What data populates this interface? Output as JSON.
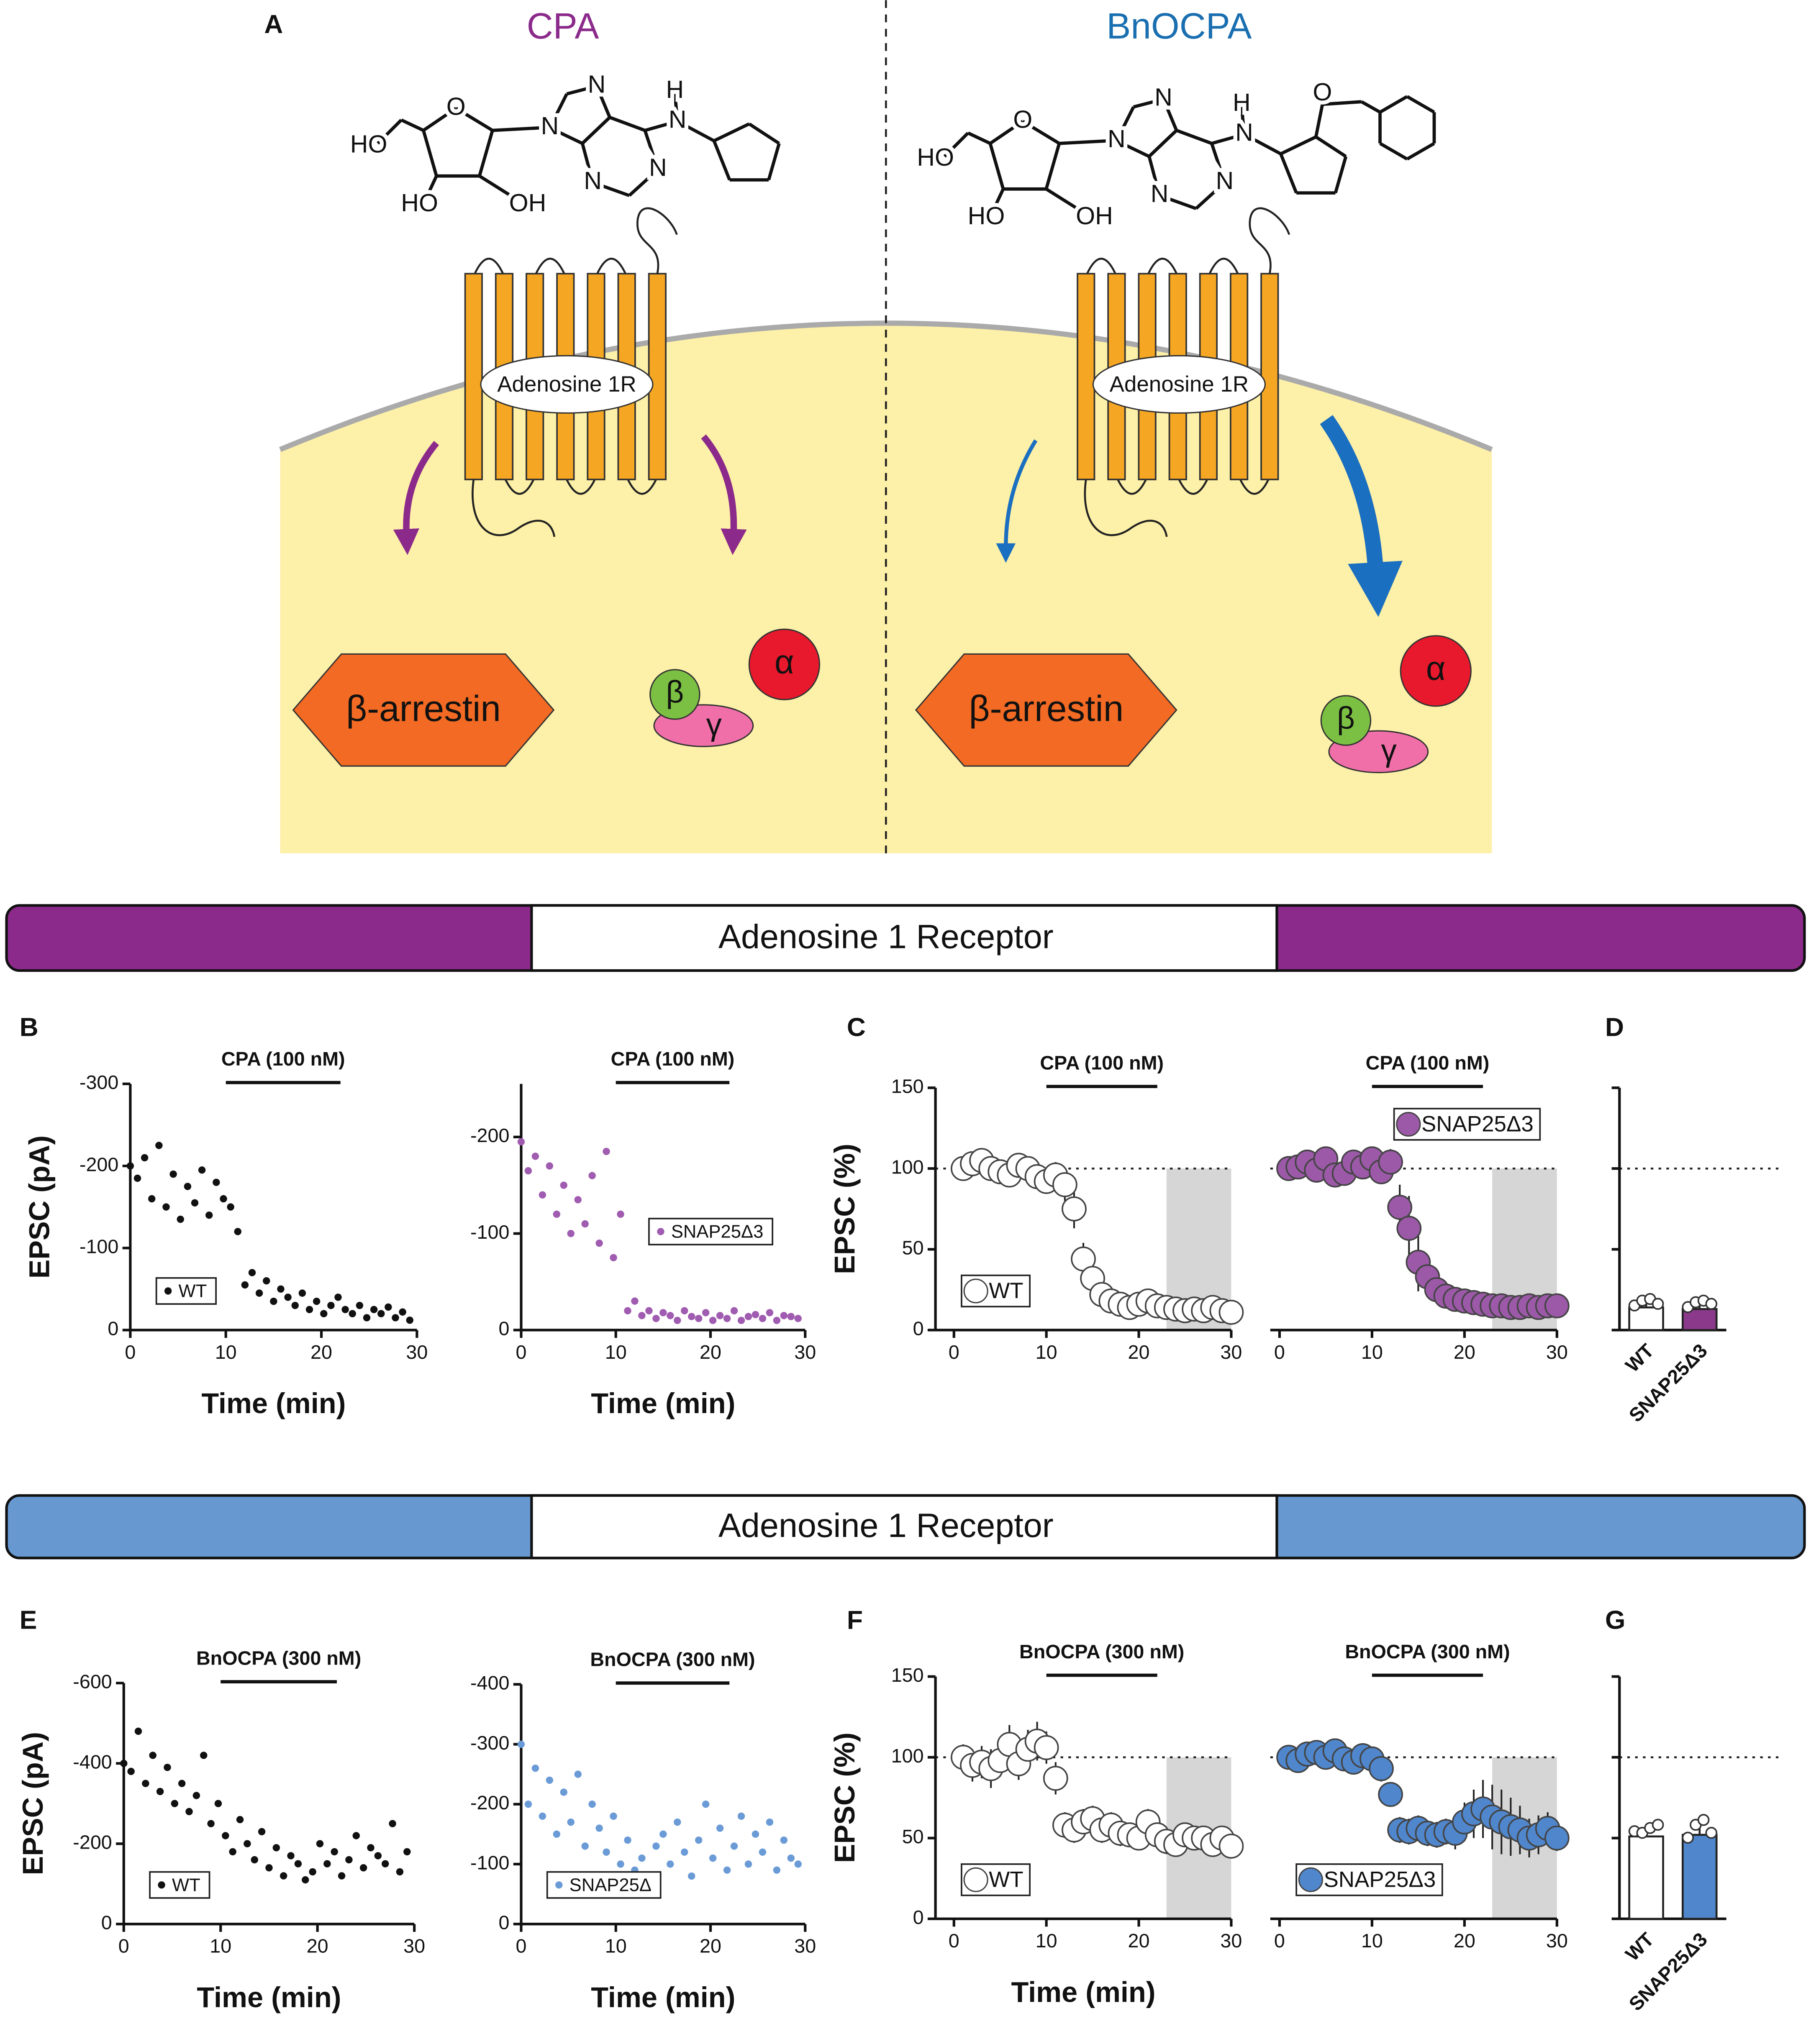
{
  "panel_a": {
    "label": "A",
    "left_title": "CPA",
    "right_title": "BnOCPA",
    "receptor": "Adenosine 1R",
    "arrestin": "β-arrestin",
    "alpha": "α",
    "beta": "β",
    "gamma": "γ",
    "cpa_atoms": [
      "HO",
      "O",
      "N",
      "N",
      "N",
      "N",
      "H",
      "N",
      "HO",
      "OH"
    ],
    "bnocpa_atoms": [
      "HO",
      "O",
      "N",
      "N",
      "N",
      "N",
      "H",
      "N",
      "HO",
      "OH",
      "O"
    ]
  },
  "banners": [
    {
      "text": "Adenosine 1 Receptor",
      "color": "#8b2a8b"
    },
    {
      "text": "Adenosine 1 Receptor",
      "color": "#6798d0"
    }
  ],
  "panel_labels": [
    "B",
    "C",
    "D",
    "E",
    "F",
    "G"
  ],
  "chart_data": [
    {
      "type": "scatter",
      "title": "CPA (100 nM)",
      "drug_window": [
        10,
        22
      ],
      "xlabel": "Time (min)",
      "ylabel": "EPSC (pA)",
      "x": [
        0,
        0.75,
        1.5,
        2.25,
        3,
        3.75,
        4.5,
        5.25,
        6,
        6.75,
        7.5,
        8.25,
        9,
        9.75,
        10.5,
        11.25,
        12,
        12.75,
        13.5,
        14.25,
        15,
        15.75,
        16.5,
        17.25,
        18,
        18.75,
        19.5,
        20.25,
        21,
        21.75,
        22.5,
        23.25,
        24,
        24.75,
        25.5,
        26.25,
        27,
        27.75,
        28.5,
        29.25
      ],
      "series": [
        {
          "name": "WT",
          "color": "#111111",
          "values": [
            -200,
            -185,
            -210,
            -160,
            -225,
            -150,
            -190,
            -135,
            -175,
            -155,
            -195,
            -140,
            -180,
            -160,
            -150,
            -120,
            -55,
            -70,
            -45,
            -60,
            -35,
            -50,
            -40,
            -30,
            -45,
            -25,
            -35,
            -20,
            -30,
            -40,
            -25,
            -20,
            -30,
            -15,
            -25,
            -20,
            -28,
            -15,
            -22,
            -12
          ]
        }
      ],
      "xlim": [
        0,
        30
      ],
      "ylim": [
        0,
        -300
      ],
      "xticks": [
        0,
        10,
        20,
        30
      ],
      "yticks": [
        0,
        -100,
        -200,
        -300
      ],
      "legend": "bottom-left"
    },
    {
      "type": "scatter",
      "title": "CPA (100 nM)",
      "drug_window": [
        10,
        22
      ],
      "xlabel": "Time (min)",
      "x": [
        0,
        0.75,
        1.5,
        2.25,
        3,
        3.75,
        4.5,
        5.25,
        6,
        6.75,
        7.5,
        8.25,
        9,
        9.75,
        10.5,
        11.25,
        12,
        12.75,
        13.5,
        14.25,
        15,
        15.75,
        16.5,
        17.25,
        18,
        18.75,
        19.5,
        20.25,
        21,
        21.75,
        22.5,
        23.25,
        24,
        24.75,
        25.5,
        26.25,
        27,
        27.75,
        28.5,
        29.25
      ],
      "series": [
        {
          "name": "SNAP25Δ3",
          "color": "#a05cb0",
          "values": [
            -195,
            -165,
            -180,
            -140,
            -170,
            -120,
            -150,
            -100,
            -135,
            -110,
            -160,
            -90,
            -185,
            -75,
            -120,
            -20,
            -30,
            -15,
            -20,
            -12,
            -18,
            -15,
            -10,
            -20,
            -14,
            -12,
            -18,
            -10,
            -15,
            -12,
            -20,
            -10,
            -14,
            -16,
            -12,
            -18,
            -10,
            -15,
            -14,
            -12
          ]
        }
      ],
      "xlim": [
        0,
        30
      ],
      "ylim": [
        0,
        -255
      ],
      "xticks": [
        0,
        10,
        20,
        30
      ],
      "yticks": [
        0,
        -100,
        -200
      ],
      "legend": "right"
    },
    {
      "type": "errorbar",
      "title": "CPA (100 nM)",
      "drug_window": [
        10,
        22
      ],
      "ylabel": "EPSC (%)",
      "x": [
        1,
        2,
        3,
        4,
        5,
        6,
        7,
        8,
        9,
        10,
        11,
        12,
        13,
        14,
        15,
        16,
        17,
        18,
        19,
        20,
        21,
        22,
        23,
        24,
        25,
        26,
        27,
        28,
        29,
        30
      ],
      "series": [
        {
          "name": "WT",
          "color": "#ffffff",
          "values": [
            100,
            103,
            105,
            100,
            98,
            96,
            102,
            100,
            95,
            92,
            96,
            90,
            75,
            44,
            32,
            22,
            18,
            16,
            14,
            16,
            18,
            15,
            14,
            13,
            12,
            13,
            12,
            14,
            12,
            11
          ],
          "errors": [
            5,
            4,
            5,
            5,
            6,
            5,
            6,
            5,
            6,
            7,
            8,
            10,
            12,
            10,
            8,
            6,
            5,
            4,
            3,
            3,
            3,
            3,
            3,
            3,
            2,
            2,
            2,
            2,
            2,
            2
          ]
        }
      ],
      "xlim": [
        -2,
        30
      ],
      "ylim": [
        0,
        150
      ],
      "xticks": [
        0,
        10,
        20,
        30
      ],
      "yticks": [
        0,
        50,
        100,
        150
      ],
      "ref_line": 100,
      "shade": [
        23,
        30
      ],
      "legend": "bottom-left"
    },
    {
      "type": "errorbar",
      "title": "CPA (100 nM)",
      "drug_window": [
        10,
        22
      ],
      "x": [
        1,
        2,
        3,
        4,
        5,
        6,
        7,
        8,
        9,
        10,
        11,
        12,
        13,
        14,
        15,
        16,
        17,
        18,
        19,
        20,
        21,
        22,
        23,
        24,
        25,
        26,
        27,
        28,
        29,
        30
      ],
      "series": [
        {
          "name": "SNAP25Δ3",
          "color": "#9b59a8",
          "values": [
            100,
            101,
            104,
            99,
            106,
            96,
            97,
            104,
            101,
            106,
            98,
            104,
            76,
            63,
            42,
            33,
            25,
            21,
            19,
            18,
            17,
            16,
            15,
            15,
            14,
            14,
            15,
            14,
            15,
            15
          ],
          "errors": [
            5,
            5,
            5,
            5,
            5,
            5,
            5,
            5,
            5,
            5,
            6,
            8,
            14,
            20,
            18,
            12,
            8,
            6,
            4,
            3,
            3,
            3,
            3,
            3,
            2,
            2,
            2,
            2,
            2,
            2
          ]
        }
      ],
      "xlim": [
        -1,
        30
      ],
      "ylim": [
        0,
        150
      ],
      "xticks": [
        0,
        10,
        20,
        30
      ],
      "y_axis": false,
      "ref_line": 100,
      "shade": [
        23,
        30
      ],
      "legend": "top-right"
    },
    {
      "type": "bar",
      "categories": [
        "WT",
        "SNAP25Δ3"
      ],
      "values": [
        14,
        13
      ],
      "errors": [
        2,
        2
      ],
      "points": [
        [
          12,
          15,
          16,
          13
        ],
        [
          11,
          14,
          15,
          13
        ]
      ],
      "colors": [
        "#ffffff",
        "#8b3a8b"
      ],
      "ylim": [
        0,
        150
      ],
      "yticks": [
        0,
        50,
        100,
        150
      ],
      "tick_labels": false,
      "ref_line": 100
    },
    {
      "type": "scatter",
      "title": "BnOCPA (300 nM)",
      "drug_window": [
        10,
        22
      ],
      "xlabel": "Time (min)",
      "ylabel": "EPSC (pA)",
      "x": [
        0,
        0.75,
        1.5,
        2.25,
        3,
        3.75,
        4.5,
        5.25,
        6,
        6.75,
        7.5,
        8.25,
        9,
        9.75,
        10.5,
        11.25,
        12,
        12.75,
        13.5,
        14.25,
        15,
        15.75,
        16.5,
        17.25,
        18,
        18.75,
        19.5,
        20.25,
        21,
        21.75,
        22.5,
        23.25,
        24,
        24.75,
        25.5,
        26.25,
        27,
        27.75,
        28.5,
        29.25
      ],
      "series": [
        {
          "name": "WT",
          "color": "#111111",
          "values": [
            -400,
            -380,
            -480,
            -350,
            -420,
            -330,
            -390,
            -300,
            -350,
            -280,
            -320,
            -420,
            -250,
            -300,
            -220,
            -180,
            -260,
            -200,
            -160,
            -230,
            -140,
            -190,
            -120,
            -170,
            -150,
            -110,
            -130,
            -200,
            -150,
            -180,
            -120,
            -160,
            -220,
            -140,
            -190,
            -170,
            -150,
            -250,
            -130,
            -180
          ]
        }
      ],
      "xlim": [
        0,
        30
      ],
      "ylim": [
        0,
        -600
      ],
      "xticks": [
        0,
        10,
        20,
        30
      ],
      "yticks": [
        0,
        -200,
        -400,
        -600
      ],
      "legend": "bottom-left"
    },
    {
      "type": "scatter",
      "title": "BnOCPA (300 nM)",
      "drug_window": [
        10,
        22
      ],
      "xlabel": "Time (min)",
      "x": [
        0,
        0.75,
        1.5,
        2.25,
        3,
        3.75,
        4.5,
        5.25,
        6,
        6.75,
        7.5,
        8.25,
        9,
        9.75,
        10.5,
        11.25,
        12,
        12.75,
        13.5,
        14.25,
        15,
        15.75,
        16.5,
        17.25,
        18,
        18.75,
        19.5,
        20.25,
        21,
        21.75,
        22.5,
        23.25,
        24,
        24.75,
        25.5,
        26.25,
        27,
        27.75,
        28.5,
        29.25
      ],
      "series": [
        {
          "name": "SNAP25Δ",
          "color": "#6a9bd6",
          "values": [
            -300,
            -200,
            -260,
            -180,
            -240,
            -150,
            -220,
            -170,
            -250,
            -130,
            -200,
            -160,
            -120,
            -180,
            -100,
            -140,
            -90,
            -110,
            -70,
            -130,
            -150,
            -100,
            -170,
            -120,
            -80,
            -140,
            -200,
            -110,
            -160,
            -90,
            -130,
            -180,
            -100,
            -150,
            -120,
            -170,
            -90,
            -140,
            -110,
            -100
          ]
        }
      ],
      "xlim": [
        0,
        30
      ],
      "ylim": [
        0,
        -400
      ],
      "xticks": [
        0,
        10,
        20,
        30
      ],
      "yticks": [
        0,
        -100,
        -200,
        -300,
        -400
      ],
      "legend": "bottom-left"
    },
    {
      "type": "errorbar",
      "title": "BnOCPA (300 nM)",
      "drug_window": [
        10,
        22
      ],
      "xlabel": "Time (min)",
      "ylabel": "EPSC (%)",
      "x": [
        1,
        2,
        3,
        4,
        5,
        6,
        7,
        8,
        9,
        10,
        11,
        12,
        13,
        14,
        15,
        16,
        17,
        18,
        19,
        20,
        21,
        22,
        23,
        24,
        25,
        26,
        27,
        28,
        29,
        30
      ],
      "series": [
        {
          "name": "WT",
          "color": "#ffffff",
          "values": [
            100,
            95,
            97,
            93,
            98,
            108,
            96,
            105,
            110,
            106,
            87,
            58,
            55,
            60,
            62,
            55,
            58,
            53,
            52,
            50,
            60,
            52,
            48,
            46,
            52,
            50,
            50,
            46,
            50,
            45
          ],
          "errors": [
            8,
            10,
            10,
            12,
            10,
            12,
            10,
            12,
            12,
            10,
            10,
            8,
            8,
            8,
            8,
            8,
            8,
            8,
            6,
            6,
            8,
            8,
            8,
            6,
            6,
            6,
            6,
            6,
            6,
            5
          ]
        }
      ],
      "xlim": [
        -2,
        30
      ],
      "ylim": [
        0,
        150
      ],
      "xticks": [
        0,
        10,
        20,
        30
      ],
      "yticks": [
        0,
        50,
        100,
        150
      ],
      "ref_line": 100,
      "shade": [
        23,
        30
      ],
      "legend": "bottom-left"
    },
    {
      "type": "errorbar",
      "title": "BnOCPA (300 nM)",
      "drug_window": [
        10,
        22
      ],
      "x": [
        1,
        2,
        3,
        4,
        5,
        6,
        7,
        8,
        9,
        10,
        11,
        12,
        13,
        14,
        15,
        16,
        17,
        18,
        19,
        20,
        21,
        22,
        23,
        24,
        25,
        26,
        27,
        28,
        29,
        30
      ],
      "series": [
        {
          "name": "SNAP25Δ3",
          "color": "#4f86cc",
          "values": [
            100,
            98,
            102,
            103,
            100,
            104,
            99,
            97,
            101,
            99,
            93,
            77,
            55,
            54,
            56,
            53,
            52,
            54,
            53,
            60,
            65,
            68,
            63,
            60,
            57,
            55,
            50,
            52,
            56,
            50
          ],
          "errors": [
            5,
            5,
            5,
            5,
            5,
            5,
            5,
            5,
            5,
            5,
            8,
            6,
            8,
            8,
            8,
            8,
            8,
            8,
            10,
            12,
            15,
            18,
            20,
            20,
            18,
            15,
            12,
            12,
            10,
            8
          ]
        }
      ],
      "xlim": [
        -1,
        30
      ],
      "ylim": [
        0,
        150
      ],
      "xticks": [
        0,
        10,
        20,
        30
      ],
      "y_axis": false,
      "ref_line": 100,
      "shade": [
        23,
        30
      ],
      "legend": "bottom-left"
    },
    {
      "type": "bar",
      "categories": [
        "WT",
        "SNAP25Δ3"
      ],
      "values": [
        51,
        52
      ],
      "errors": [
        2,
        5
      ],
      "points": [
        [
          51,
          50,
          53,
          55
        ],
        [
          47,
          55,
          58,
          50
        ]
      ],
      "colors": [
        "#ffffff",
        "#4f86cc"
      ],
      "ylim": [
        0,
        150
      ],
      "yticks": [
        0,
        50,
        100,
        150
      ],
      "tick_labels": false,
      "ref_line": 100
    }
  ]
}
